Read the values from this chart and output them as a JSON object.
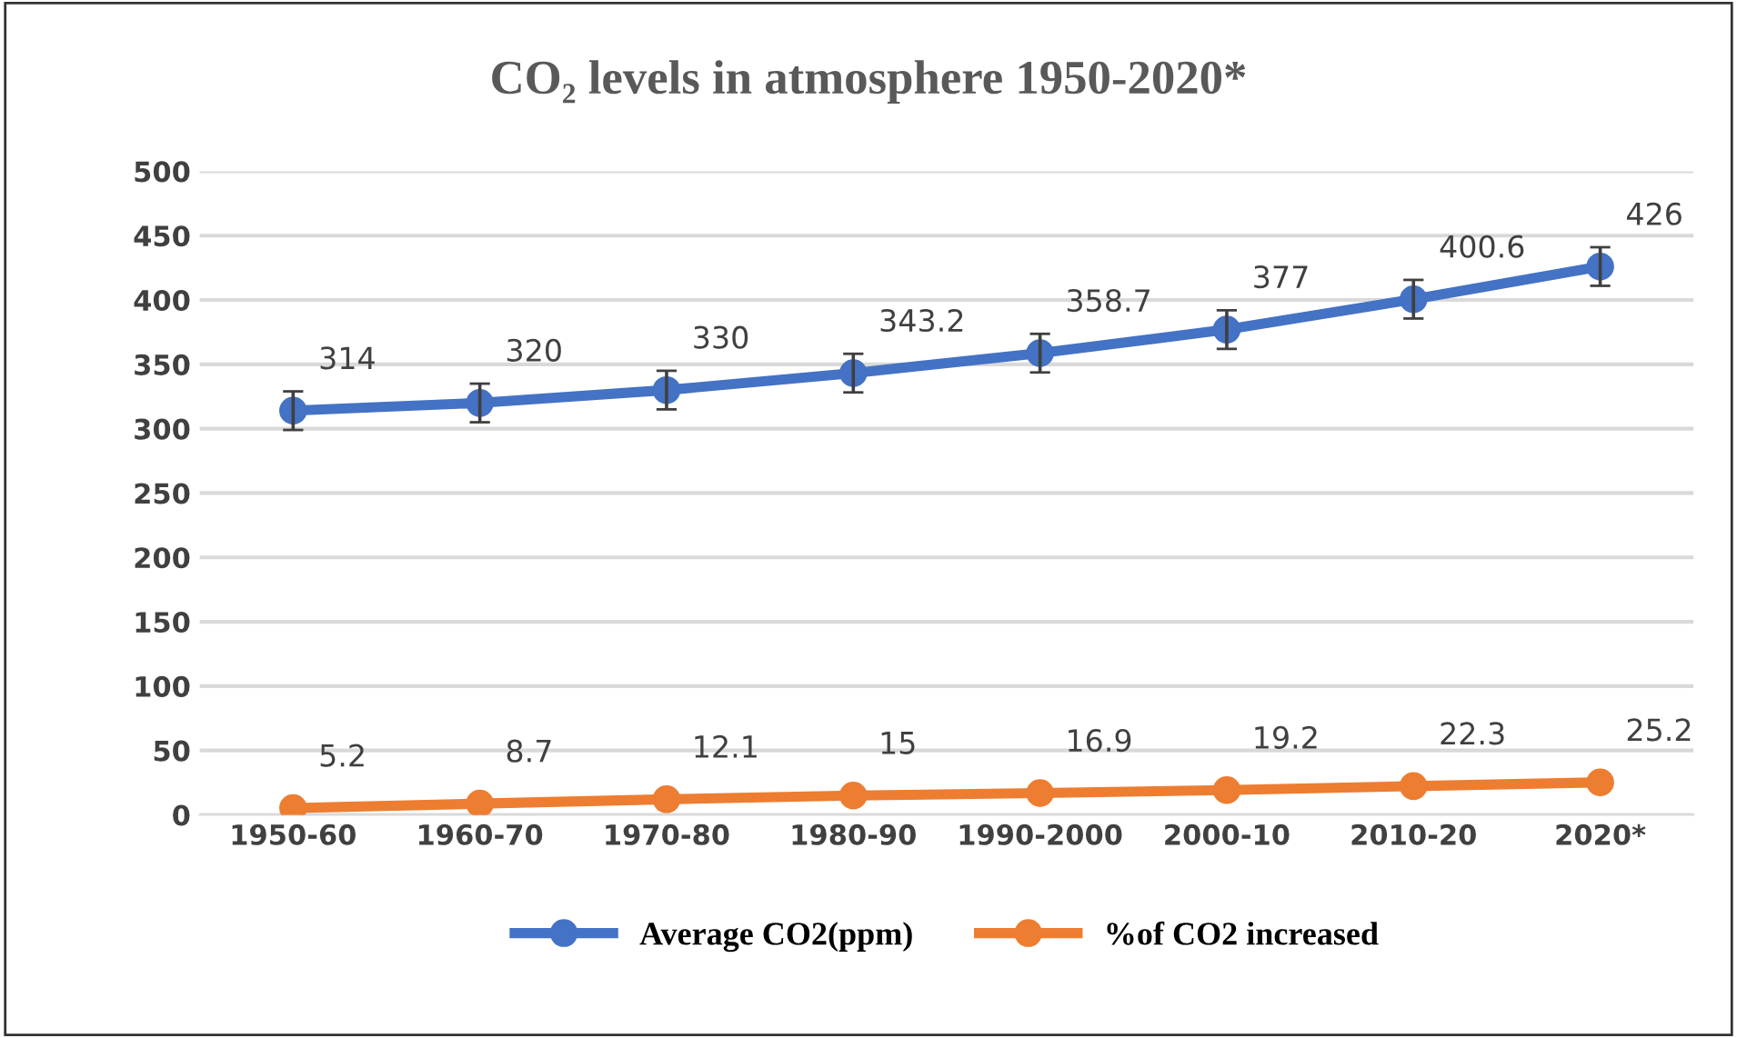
{
  "chart_data": {
    "type": "line",
    "title": "CO₂ levels in atmosphere 1950-2020*",
    "categories": [
      "1950-60",
      "1960-70",
      "1970-80",
      "1980-90",
      "1990-2000",
      "2000-10",
      "2010-20",
      "2020*"
    ],
    "series": [
      {
        "name": "Average CO2(ppm)",
        "color": "#4472c4",
        "values": [
          314,
          320,
          330,
          343.2,
          358.7,
          377,
          400.6,
          426
        ],
        "errors": [
          15,
          15,
          15,
          15,
          15,
          15,
          15,
          15
        ]
      },
      {
        "name": "%of CO2 increased",
        "color": "#ed7d31",
        "values": [
          5.2,
          8.7,
          12.1,
          15,
          16.9,
          19.2,
          22.3,
          25.2
        ]
      }
    ],
    "ylim": [
      0,
      500
    ],
    "yticks": [
      0,
      50,
      100,
      150,
      200,
      250,
      300,
      350,
      400,
      450,
      500
    ],
    "grid": "y",
    "legend": "bottom",
    "marker": "circle",
    "line_style": "solid",
    "data_labels": true
  }
}
